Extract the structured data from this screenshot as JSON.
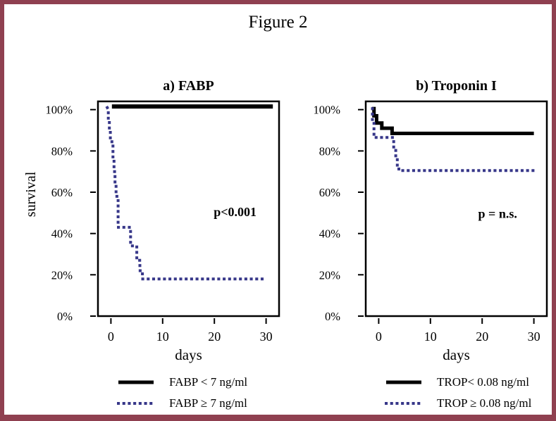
{
  "figure": {
    "title": "Figure 2",
    "border_color": "#8f4050",
    "background": "#ffffff",
    "curve_blue": "#373789",
    "curve_black": "#000000"
  },
  "chart_data": [
    {
      "type": "line",
      "subtype": "kaplan-meier-step",
      "title": "a) FABP",
      "xlabel": "days",
      "ylabel": "survival",
      "xlim": [
        -2.5,
        32.5
      ],
      "ylim": [
        0,
        104
      ],
      "xticks": [
        0,
        10,
        20,
        30
      ],
      "yticks": [
        0,
        20,
        40,
        60,
        80,
        100
      ],
      "ytick_suffix": "%",
      "grid": false,
      "legend_position": "below",
      "annotation": {
        "text": "p<0.001",
        "x": 24,
        "y": 48.5
      },
      "series": [
        {
          "name": "FABP < 7 ng/ml",
          "style": "solid",
          "color": "#000000",
          "width": 6,
          "points": [
            [
              0.2,
              101.5
            ],
            [
              31.3,
              101.5
            ]
          ]
        },
        {
          "name": "FABP ≥ 7 ng/ml",
          "style": "dotted",
          "color": "#373789",
          "width": 4,
          "points": [
            [
              -0.7,
              101
            ],
            [
              -0.5,
              100
            ],
            [
              -0.5,
              95
            ],
            [
              -0.3,
              95
            ],
            [
              -0.3,
              90
            ],
            [
              -0.1,
              90
            ],
            [
              -0.1,
              85
            ],
            [
              0.2,
              85
            ],
            [
              0.2,
              83
            ],
            [
              0.4,
              83
            ],
            [
              0.4,
              75
            ],
            [
              0.6,
              75
            ],
            [
              0.6,
              70
            ],
            [
              0.8,
              70
            ],
            [
              0.8,
              63
            ],
            [
              1.0,
              63
            ],
            [
              1.0,
              58
            ],
            [
              1.4,
              58
            ],
            [
              1.4,
              43
            ],
            [
              3.8,
              43
            ],
            [
              3.8,
              34
            ],
            [
              5.0,
              34
            ],
            [
              5.0,
              27
            ],
            [
              5.6,
              27
            ],
            [
              5.6,
              22
            ],
            [
              6.1,
              22
            ],
            [
              6.1,
              18
            ],
            [
              29.7,
              18
            ]
          ]
        }
      ]
    },
    {
      "type": "line",
      "subtype": "kaplan-meier-step",
      "title": "b) Troponin I",
      "xlabel": "days",
      "ylabel": "",
      "xlim": [
        -2.5,
        32.5
      ],
      "ylim": [
        0,
        104
      ],
      "xticks": [
        0,
        10,
        20,
        30
      ],
      "yticks": [
        0,
        20,
        40,
        60,
        80,
        100
      ],
      "ytick_suffix": "%",
      "grid": false,
      "legend_position": "below",
      "annotation": {
        "text": "p = n.s.",
        "x": 23,
        "y": 47.5
      },
      "series": [
        {
          "name": "TROP< 0.08 ng/ml",
          "style": "solid",
          "color": "#000000",
          "width": 5,
          "points": [
            [
              -1.3,
              100.5
            ],
            [
              -0.9,
              100.5
            ],
            [
              -0.9,
              97
            ],
            [
              -0.4,
              97
            ],
            [
              -0.4,
              93.5
            ],
            [
              0.6,
              93.5
            ],
            [
              0.6,
              91
            ],
            [
              2.6,
              91
            ],
            [
              2.6,
              88.5
            ],
            [
              30,
              88.5
            ]
          ]
        },
        {
          "name": "TROP ≥ 0.08 ng/ml",
          "style": "dotted",
          "color": "#373789",
          "width": 4,
          "points": [
            [
              -1.2,
              100.5
            ],
            [
              -1.2,
              94
            ],
            [
              -0.9,
              94
            ],
            [
              -0.9,
              86.5
            ],
            [
              2.9,
              86.5
            ],
            [
              2.9,
              80.5
            ],
            [
              3.3,
              80.5
            ],
            [
              3.3,
              77
            ],
            [
              3.6,
              77
            ],
            [
              3.6,
              72.5
            ],
            [
              3.9,
              72.5
            ],
            [
              3.9,
              70.5
            ],
            [
              30,
              70.5
            ]
          ]
        }
      ]
    }
  ]
}
